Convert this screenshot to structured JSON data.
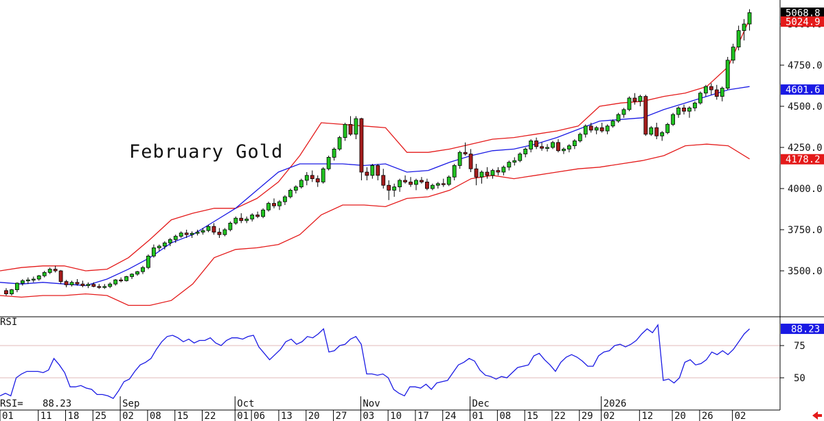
{
  "chart_data": {
    "type": "candlestick",
    "title": "February Gold",
    "price_axis": {
      "ylim": [
        3240,
        5090
      ],
      "ticks": [
        {
          "value": 3500,
          "label": "3500.0"
        },
        {
          "value": 3750,
          "label": "3750.0"
        },
        {
          "value": 4000,
          "label": "4000.0"
        },
        {
          "value": 4250,
          "label": "4250.0"
        },
        {
          "value": 4500,
          "label": "4500.0"
        },
        {
          "value": 4750,
          "label": "4750.0"
        },
        {
          "value": 5000,
          "label": "5000.0"
        }
      ]
    },
    "badges": [
      {
        "label": "5068.8",
        "value": 5068.8,
        "color": "#000000"
      },
      {
        "label": "5024.9",
        "value": 5024.9,
        "color": "#e41a1a"
      },
      {
        "label": "4601.6",
        "value": 4601.6,
        "color": "#1a1ae4"
      },
      {
        "label": "4178.2",
        "value": 4178.2,
        "color": "#e41a1a"
      }
    ],
    "x_axis": {
      "date_ticks": [
        "01",
        "11",
        "18",
        "25",
        "02",
        "08",
        "15",
        "22",
        "01",
        "06",
        "13",
        "20",
        "27",
        "03",
        "10",
        "17",
        "24",
        "01",
        "08",
        "15",
        "22",
        "29",
        "02",
        "12",
        "20",
        "26",
        "02"
      ],
      "date_tick_bar": [
        0,
        7,
        12,
        17,
        22,
        27,
        32,
        37,
        43,
        46,
        51,
        56,
        61,
        66,
        71,
        76,
        81,
        86,
        91,
        96,
        101,
        106,
        110,
        117,
        123,
        128,
        134
      ],
      "months": [
        {
          "label": "Sep",
          "bar": 22
        },
        {
          "label": "Oct",
          "bar": 43
        },
        {
          "label": "Nov",
          "bar": 66
        },
        {
          "label": "Dec",
          "bar": 86
        },
        {
          "label": "2026",
          "bar": 110
        }
      ]
    },
    "ohlc": [
      [
        3380,
        3395,
        3350,
        3360
      ],
      [
        3360,
        3390,
        3350,
        3385
      ],
      [
        3385,
        3430,
        3370,
        3425
      ],
      [
        3425,
        3450,
        3410,
        3440
      ],
      [
        3440,
        3460,
        3420,
        3445
      ],
      [
        3445,
        3465,
        3430,
        3450
      ],
      [
        3450,
        3475,
        3440,
        3470
      ],
      [
        3470,
        3500,
        3460,
        3490
      ],
      [
        3490,
        3520,
        3480,
        3510
      ],
      [
        3510,
        3530,
        3490,
        3500
      ],
      [
        3500,
        3505,
        3420,
        3435
      ],
      [
        3435,
        3445,
        3400,
        3415
      ],
      [
        3415,
        3440,
        3405,
        3430
      ],
      [
        3430,
        3450,
        3410,
        3420
      ],
      [
        3420,
        3440,
        3400,
        3410
      ],
      [
        3410,
        3430,
        3395,
        3418
      ],
      [
        3418,
        3430,
        3400,
        3405
      ],
      [
        3405,
        3420,
        3390,
        3400
      ],
      [
        3400,
        3420,
        3390,
        3405
      ],
      [
        3405,
        3430,
        3395,
        3420
      ],
      [
        3420,
        3450,
        3410,
        3445
      ],
      [
        3445,
        3460,
        3430,
        3440
      ],
      [
        3440,
        3470,
        3435,
        3465
      ],
      [
        3465,
        3485,
        3450,
        3480
      ],
      [
        3480,
        3500,
        3470,
        3495
      ],
      [
        3495,
        3530,
        3480,
        3520
      ],
      [
        3520,
        3600,
        3510,
        3590
      ],
      [
        3590,
        3660,
        3580,
        3640
      ],
      [
        3640,
        3660,
        3620,
        3650
      ],
      [
        3650,
        3680,
        3630,
        3670
      ],
      [
        3670,
        3700,
        3650,
        3690
      ],
      [
        3690,
        3720,
        3670,
        3710
      ],
      [
        3710,
        3740,
        3700,
        3730
      ],
      [
        3730,
        3750,
        3700,
        3720
      ],
      [
        3720,
        3740,
        3700,
        3728
      ],
      [
        3728,
        3750,
        3715,
        3735
      ],
      [
        3735,
        3760,
        3720,
        3745
      ],
      [
        3745,
        3780,
        3735,
        3770
      ],
      [
        3770,
        3790,
        3720,
        3735
      ],
      [
        3735,
        3760,
        3700,
        3720
      ],
      [
        3720,
        3760,
        3710,
        3750
      ],
      [
        3750,
        3800,
        3740,
        3790
      ],
      [
        3790,
        3830,
        3780,
        3820
      ],
      [
        3820,
        3850,
        3790,
        3805
      ],
      [
        3805,
        3830,
        3790,
        3815
      ],
      [
        3815,
        3850,
        3800,
        3840
      ],
      [
        3840,
        3860,
        3820,
        3830
      ],
      [
        3830,
        3880,
        3820,
        3870
      ],
      [
        3870,
        3920,
        3860,
        3910
      ],
      [
        3910,
        3940,
        3880,
        3895
      ],
      [
        3895,
        3930,
        3870,
        3920
      ],
      [
        3920,
        3960,
        3900,
        3950
      ],
      [
        3950,
        4000,
        3940,
        3990
      ],
      [
        3990,
        4020,
        3970,
        4010
      ],
      [
        4010,
        4060,
        4000,
        4050
      ],
      [
        4050,
        4100,
        4020,
        4080
      ],
      [
        4080,
        4110,
        4040,
        4060
      ],
      [
        4060,
        4080,
        4010,
        4040
      ],
      [
        4040,
        4130,
        4030,
        4120
      ],
      [
        4120,
        4200,
        4110,
        4190
      ],
      [
        4190,
        4250,
        4170,
        4240
      ],
      [
        4240,
        4320,
        4230,
        4310
      ],
      [
        4310,
        4400,
        4290,
        4390
      ],
      [
        4390,
        4440,
        4320,
        4330
      ],
      [
        4330,
        4440,
        4300,
        4425
      ],
      [
        4425,
        4430,
        4050,
        4100
      ],
      [
        4100,
        4130,
        4050,
        4080
      ],
      [
        4080,
        4150,
        4060,
        4140
      ],
      [
        4140,
        4150,
        4050,
        4080
      ],
      [
        4080,
        4120,
        4000,
        4020
      ],
      [
        4020,
        4050,
        3930,
        3990
      ],
      [
        3990,
        4030,
        3950,
        4010
      ],
      [
        4010,
        4060,
        3980,
        4050
      ],
      [
        4050,
        4080,
        4030,
        4040
      ],
      [
        4040,
        4070,
        4010,
        4025
      ],
      [
        4025,
        4060,
        3990,
        4050
      ],
      [
        4050,
        4070,
        4030,
        4040
      ],
      [
        4040,
        4060,
        3990,
        4000
      ],
      [
        4000,
        4030,
        3990,
        4020
      ],
      [
        4020,
        4040,
        4000,
        4030
      ],
      [
        4030,
        4060,
        4010,
        4025
      ],
      [
        4025,
        4080,
        4015,
        4070
      ],
      [
        4070,
        4150,
        4050,
        4140
      ],
      [
        4140,
        4230,
        4120,
        4220
      ],
      [
        4220,
        4280,
        4200,
        4210
      ],
      [
        4210,
        4240,
        4100,
        4120
      ],
      [
        4120,
        4150,
        4020,
        4070
      ],
      [
        4070,
        4110,
        4030,
        4100
      ],
      [
        4100,
        4130,
        4060,
        4080
      ],
      [
        4080,
        4120,
        4060,
        4110
      ],
      [
        4110,
        4130,
        4080,
        4100
      ],
      [
        4100,
        4140,
        4080,
        4130
      ],
      [
        4130,
        4170,
        4110,
        4160
      ],
      [
        4160,
        4190,
        4140,
        4170
      ],
      [
        4170,
        4220,
        4160,
        4210
      ],
      [
        4210,
        4250,
        4190,
        4240
      ],
      [
        4240,
        4300,
        4220,
        4290
      ],
      [
        4290,
        4310,
        4240,
        4255
      ],
      [
        4255,
        4280,
        4230,
        4245
      ],
      [
        4245,
        4270,
        4225,
        4250
      ],
      [
        4250,
        4290,
        4240,
        4280
      ],
      [
        4280,
        4300,
        4220,
        4230
      ],
      [
        4230,
        4250,
        4210,
        4240
      ],
      [
        4240,
        4270,
        4220,
        4260
      ],
      [
        4260,
        4300,
        4240,
        4290
      ],
      [
        4290,
        4340,
        4280,
        4330
      ],
      [
        4330,
        4390,
        4310,
        4380
      ],
      [
        4380,
        4400,
        4340,
        4355
      ],
      [
        4355,
        4380,
        4330,
        4370
      ],
      [
        4370,
        4400,
        4340,
        4350
      ],
      [
        4350,
        4390,
        4330,
        4380
      ],
      [
        4380,
        4420,
        4370,
        4410
      ],
      [
        4410,
        4460,
        4400,
        4450
      ],
      [
        4450,
        4490,
        4430,
        4480
      ],
      [
        4480,
        4560,
        4470,
        4550
      ],
      [
        4550,
        4580,
        4510,
        4530
      ],
      [
        4530,
        4570,
        4500,
        4560
      ],
      [
        4560,
        4570,
        4320,
        4330
      ],
      [
        4330,
        4380,
        4320,
        4370
      ],
      [
        4370,
        4400,
        4300,
        4320
      ],
      [
        4320,
        4350,
        4290,
        4340
      ],
      [
        4340,
        4400,
        4330,
        4390
      ],
      [
        4390,
        4460,
        4380,
        4450
      ],
      [
        4450,
        4500,
        4430,
        4490
      ],
      [
        4490,
        4510,
        4450,
        4470
      ],
      [
        4470,
        4500,
        4430,
        4490
      ],
      [
        4490,
        4530,
        4470,
        4520
      ],
      [
        4520,
        4590,
        4510,
        4580
      ],
      [
        4580,
        4630,
        4560,
        4620
      ],
      [
        4620,
        4640,
        4570,
        4600
      ],
      [
        4600,
        4630,
        4540,
        4560
      ],
      [
        4560,
        4620,
        4530,
        4610
      ],
      [
        4610,
        4800,
        4600,
        4780
      ],
      [
        4780,
        4880,
        4760,
        4860
      ],
      [
        4860,
        4990,
        4840,
        4960
      ],
      [
        4960,
        5030,
        4900,
        5000
      ],
      [
        5000,
        5090,
        4960,
        5068.8
      ]
    ],
    "bands": {
      "upper": [
        3500,
        3520,
        3530,
        3530,
        3500,
        3510,
        3580,
        3690,
        3810,
        3850,
        3880,
        3880,
        3940,
        4040,
        4200,
        4400,
        4390,
        4380,
        4370,
        4220,
        4220,
        4240,
        4270,
        4300,
        4310,
        4330,
        4350,
        4380,
        4500,
        4520,
        4530,
        4560,
        4580,
        4620,
        4740,
        5030
      ],
      "middle": [
        3430,
        3420,
        3430,
        3420,
        3410,
        3450,
        3510,
        3580,
        3670,
        3720,
        3800,
        3880,
        3990,
        4100,
        4150,
        4150,
        4150,
        4140,
        4150,
        4100,
        4110,
        4160,
        4200,
        4230,
        4240,
        4270,
        4310,
        4360,
        4410,
        4420,
        4430,
        4480,
        4520,
        4560,
        4600,
        4620
      ],
      "lower": [
        3350,
        3340,
        3350,
        3350,
        3360,
        3350,
        3290,
        3290,
        3320,
        3420,
        3580,
        3630,
        3640,
        3660,
        3720,
        3840,
        3900,
        3900,
        3890,
        3940,
        3950,
        3990,
        4060,
        4080,
        4060,
        4080,
        4100,
        4120,
        4130,
        4150,
        4170,
        4200,
        4260,
        4270,
        4260,
        4180
      ]
    },
    "rsi": {
      "label": "RSI",
      "readout_label": "RSI=",
      "readout_value": "88.23",
      "badge_label": "88.23",
      "ylim": [
        30,
        100
      ],
      "ticks": [
        {
          "value": 50,
          "label": "50"
        },
        {
          "value": 75,
          "label": "75"
        }
      ],
      "values": [
        36,
        38,
        36,
        50,
        53,
        55,
        55,
        55,
        54,
        56,
        65,
        60,
        54,
        43,
        43,
        44,
        42,
        41,
        37,
        37,
        36,
        34,
        40,
        47,
        49,
        55,
        60,
        62,
        65,
        72,
        78,
        82,
        83,
        81,
        78,
        80,
        77,
        79,
        79,
        81,
        77,
        75,
        79,
        81,
        81,
        80,
        82,
        83,
        74,
        69,
        64,
        68,
        72,
        78,
        80,
        76,
        78,
        82,
        81,
        84,
        88,
        70,
        71,
        75,
        76,
        80,
        82,
        76,
        53,
        53,
        52,
        53,
        50,
        41,
        38,
        36,
        43,
        43,
        42,
        45,
        41,
        46,
        47,
        48,
        54,
        60,
        62,
        65,
        63,
        56,
        52,
        51,
        49,
        51,
        50,
        54,
        58,
        59,
        60,
        67,
        69,
        64,
        60,
        55,
        62,
        66,
        68,
        66,
        63,
        59,
        59,
        67,
        70,
        71,
        75,
        76,
        74,
        76,
        79,
        84,
        88,
        85,
        91,
        48,
        49,
        46,
        50,
        62,
        64,
        60,
        61,
        64,
        70,
        68,
        71,
        68,
        72,
        78,
        84,
        88
      ]
    }
  }
}
